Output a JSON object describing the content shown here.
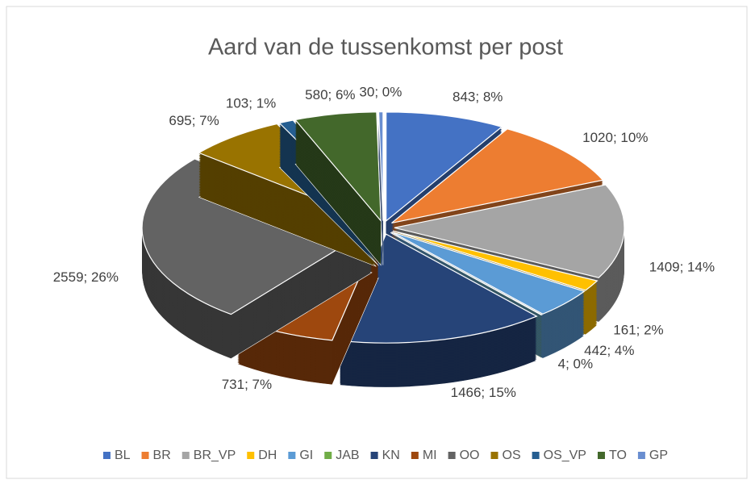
{
  "chart_data": {
    "type": "pie",
    "title": "Aard van de tussenkomst per post",
    "categories": [
      "BL",
      "BR",
      "BR_VP",
      "DH",
      "GI",
      "JAB",
      "KN",
      "MI",
      "OO",
      "OS",
      "OS_VP",
      "TO",
      "GP"
    ],
    "values": [
      843,
      1020,
      1409,
      161,
      442,
      4,
      1466,
      731,
      2559,
      695,
      103,
      580,
      30
    ],
    "value_labels": [
      "843; 8%",
      "1020; 10%",
      "1409; 14%",
      "161; 2%",
      "442; 4%",
      "4; 0%",
      "1466; 15%",
      "731; 7%",
      "2559; 26%",
      "695; 7%",
      "103; 1%",
      "580; 6%",
      "30; 0%"
    ],
    "colors": [
      "#4472c4",
      "#ed7d31",
      "#a5a5a5",
      "#ffc000",
      "#5b9bd5",
      "#70ad47",
      "#264478",
      "#9e480e",
      "#636363",
      "#997300",
      "#255e91",
      "#43682b",
      "#698ed0"
    ],
    "legend": "bottom"
  }
}
